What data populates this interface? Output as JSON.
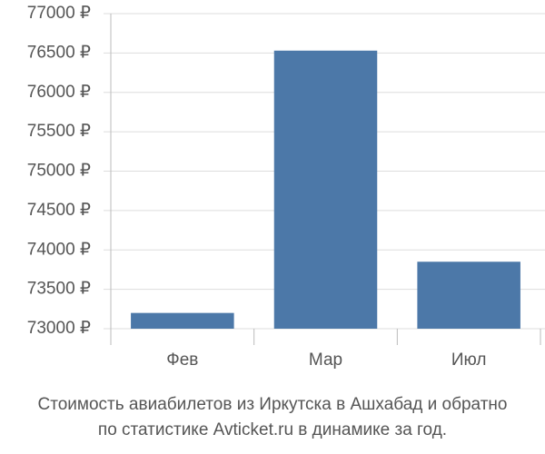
{
  "chart_data": {
    "type": "bar",
    "title": [
      "Стоимость авиабилетов из Иркутска в Ашхабад и обратно",
      "по статистике Avticket.ru в динамике за год."
    ],
    "categories": [
      "Фев",
      "Мар",
      "Июл"
    ],
    "values": [
      73200,
      76530,
      73850
    ],
    "color": "#4c78a8",
    "ylim": [
      73000,
      77000
    ],
    "yticks": [
      {
        "value": 73000,
        "label": "73000 ₽"
      },
      {
        "value": 73500,
        "label": "73500 ₽"
      },
      {
        "value": 74000,
        "label": "74000 ₽"
      },
      {
        "value": 74500,
        "label": "74500 ₽"
      },
      {
        "value": 75000,
        "label": "75000 ₽"
      },
      {
        "value": 75500,
        "label": "75500 ₽"
      },
      {
        "value": 76000,
        "label": "76000 ₽"
      },
      {
        "value": 76500,
        "label": "76500 ₽"
      },
      {
        "value": 77000,
        "label": "77000 ₽"
      }
    ],
    "grid": true
  }
}
